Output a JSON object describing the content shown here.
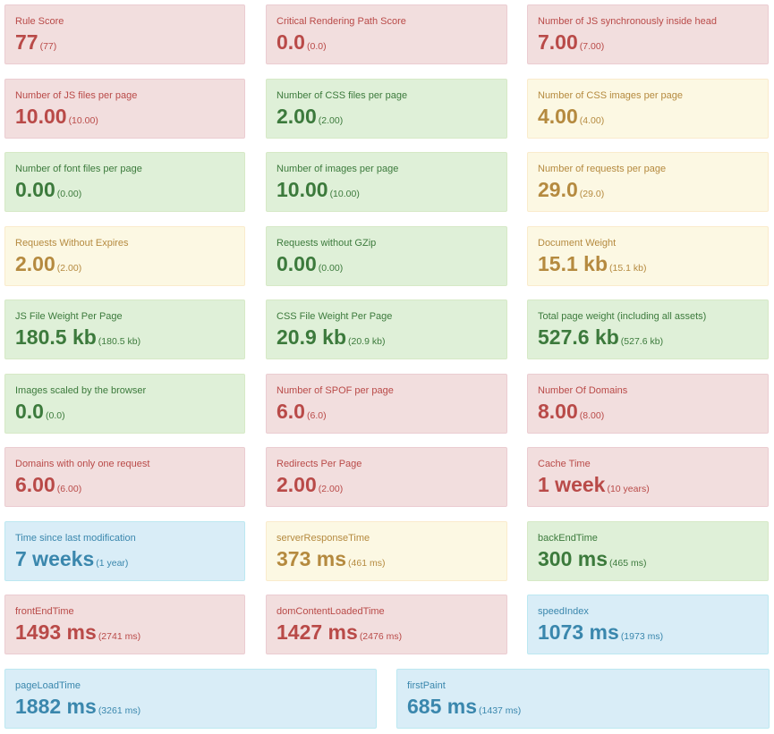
{
  "colors": {
    "danger_bg": "#f2dede",
    "danger_text": "#b94a48",
    "success_bg": "#dff0d8",
    "success_text": "#3c7a3c",
    "warning_bg": "#fcf8e3",
    "warning_text": "#b58a3f",
    "info_bg": "#d9edf7",
    "info_text": "#3a87ad"
  },
  "metrics": [
    {
      "label": "Rule Score",
      "value": "77",
      "median": "(77)",
      "status": "danger"
    },
    {
      "label": "Critical Rendering Path Score",
      "value": "0.0",
      "median": "(0.0)",
      "status": "danger"
    },
    {
      "label": "Number of JS synchronously inside head",
      "value": "7.00",
      "median": "(7.00)",
      "status": "danger"
    },
    {
      "label": "Number of JS files per page",
      "value": "10.00",
      "median": "(10.00)",
      "status": "danger"
    },
    {
      "label": "Number of CSS files per page",
      "value": "2.00",
      "median": "(2.00)",
      "status": "success"
    },
    {
      "label": "Number of CSS images per page",
      "value": "4.00",
      "median": "(4.00)",
      "status": "warning"
    },
    {
      "label": "Number of font files per page",
      "value": "0.00",
      "median": "(0.00)",
      "status": "success"
    },
    {
      "label": "Number of images per page",
      "value": "10.00",
      "median": "(10.00)",
      "status": "success"
    },
    {
      "label": "Number of requests per page",
      "value": "29.0",
      "median": "(29.0)",
      "status": "warning"
    },
    {
      "label": "Requests Without Expires",
      "value": "2.00",
      "median": "(2.00)",
      "status": "warning"
    },
    {
      "label": "Requests without GZip",
      "value": "0.00",
      "median": "(0.00)",
      "status": "success"
    },
    {
      "label": "Document Weight",
      "value": "15.1 kb",
      "median": "(15.1 kb)",
      "status": "warning"
    },
    {
      "label": "JS File Weight Per Page",
      "value": "180.5 kb",
      "median": "(180.5 kb)",
      "status": "success"
    },
    {
      "label": "CSS File Weight Per Page",
      "value": "20.9 kb",
      "median": "(20.9 kb)",
      "status": "success"
    },
    {
      "label": "Total page weight (including all assets)",
      "value": "527.6 kb",
      "median": "(527.6 kb)",
      "status": "success"
    },
    {
      "label": "Images scaled by the browser",
      "value": "0.0",
      "median": "(0.0)",
      "status": "success"
    },
    {
      "label": "Number of SPOF per page",
      "value": "6.0",
      "median": "(6.0)",
      "status": "danger"
    },
    {
      "label": "Number Of Domains",
      "value": "8.00",
      "median": "(8.00)",
      "status": "danger"
    },
    {
      "label": "Domains with only one request",
      "value": "6.00",
      "median": "(6.00)",
      "status": "danger"
    },
    {
      "label": "Redirects Per Page",
      "value": "2.00",
      "median": "(2.00)",
      "status": "danger"
    },
    {
      "label": "Cache Time",
      "value": "1 week",
      "median": "(10 years)",
      "status": "danger"
    },
    {
      "label": "Time since last modification",
      "value": "7 weeks",
      "median": "(1 year)",
      "status": "info"
    },
    {
      "label": "serverResponseTime",
      "value": "373 ms",
      "median": "(461 ms)",
      "status": "warning"
    },
    {
      "label": "backEndTime",
      "value": "300 ms",
      "median": "(465 ms)",
      "status": "success"
    },
    {
      "label": "frontEndTime",
      "value": "1493 ms",
      "median": "(2741 ms)",
      "status": "danger"
    },
    {
      "label": "domContentLoadedTime",
      "value": "1427 ms",
      "median": "(2476 ms)",
      "status": "danger"
    },
    {
      "label": "speedIndex",
      "value": "1073 ms",
      "median": "(1973 ms)",
      "status": "info"
    },
    {
      "label": "pageLoadTime",
      "value": "1882 ms",
      "median": "(3261 ms)",
      "status": "info"
    },
    {
      "label": "firstPaint",
      "value": "685 ms",
      "median": "(1437 ms)",
      "status": "info"
    }
  ]
}
